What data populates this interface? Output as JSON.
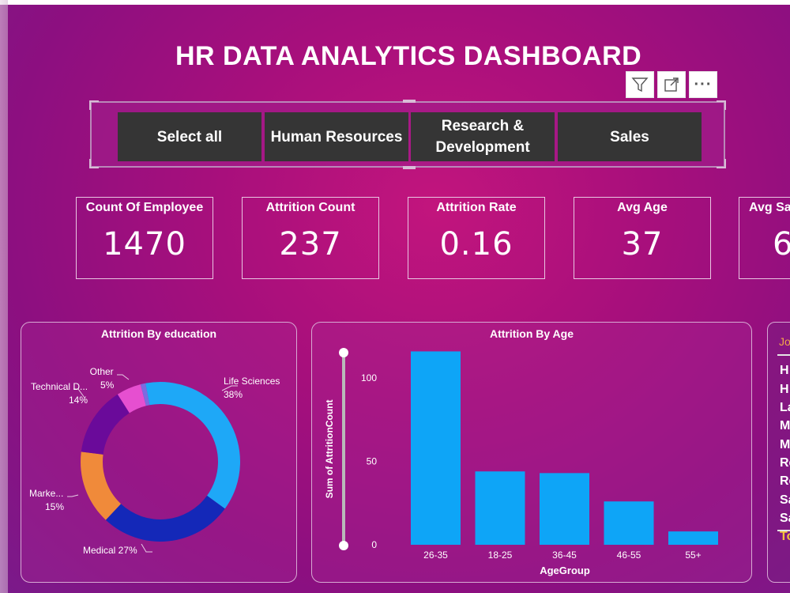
{
  "dashboard": {
    "title": "HR DATA ANALYTICS DASHBOARD"
  },
  "slicer": {
    "options": [
      "Select all",
      "Human Resources",
      "Research & Development",
      "Sales"
    ]
  },
  "toolbar": {
    "icons": [
      "filter-icon",
      "focus-mode-icon",
      "more-options-icon"
    ],
    "more_glyph": "···"
  },
  "kpis": [
    {
      "label": "Count Of Employee",
      "value": "1470"
    },
    {
      "label": "Attrition Count",
      "value": "237"
    },
    {
      "label": "Attrition Rate",
      "value": "0.16"
    },
    {
      "label": "Avg Age",
      "value": "37"
    },
    {
      "label": "Avg Sa",
      "value": "6"
    }
  ],
  "education_chart": {
    "title": "Attrition By education",
    "chart_data": {
      "type": "pie",
      "title": "Attrition By education",
      "slices": [
        {
          "label": "Life Sciences",
          "value": 38,
          "color": "#1ea8f7"
        },
        {
          "label": "Medical",
          "value": 27,
          "color": "#1428b8"
        },
        {
          "label": "Marke...",
          "value": 15,
          "color": "#f08a3a"
        },
        {
          "label": "Technical D...",
          "value": 14,
          "color": "#6a0a9a"
        },
        {
          "label": "Other",
          "value": 5,
          "color": "#e64fd0"
        },
        {
          "label": "",
          "value": 1,
          "color": "#7d6be0"
        }
      ],
      "display_labels": [
        "Life Sciences",
        "38%",
        "Medical 27%",
        "Marke...",
        "15%",
        "Technical D...",
        "14%",
        "Other",
        "5%"
      ]
    }
  },
  "age_chart": {
    "title": "Attrition By Age",
    "chart_data": {
      "type": "bar",
      "title": "Attrition By Age",
      "categories": [
        "26-35",
        "18-25",
        "36-45",
        "46-55",
        "55+"
      ],
      "values": [
        116,
        44,
        43,
        26,
        8
      ],
      "xlabel": "AgeGroup",
      "ylabel": "Sum of AttritionCount",
      "ylim": [
        0,
        120
      ],
      "yticks": [
        0,
        50,
        100
      ],
      "color": "#0ea5f7"
    }
  },
  "job_role_panel": {
    "header": "Jo",
    "items": [
      "H",
      "H",
      "La",
      "M",
      "M",
      "Re",
      "Re",
      "Sa",
      "Sa"
    ],
    "total": "To"
  }
}
